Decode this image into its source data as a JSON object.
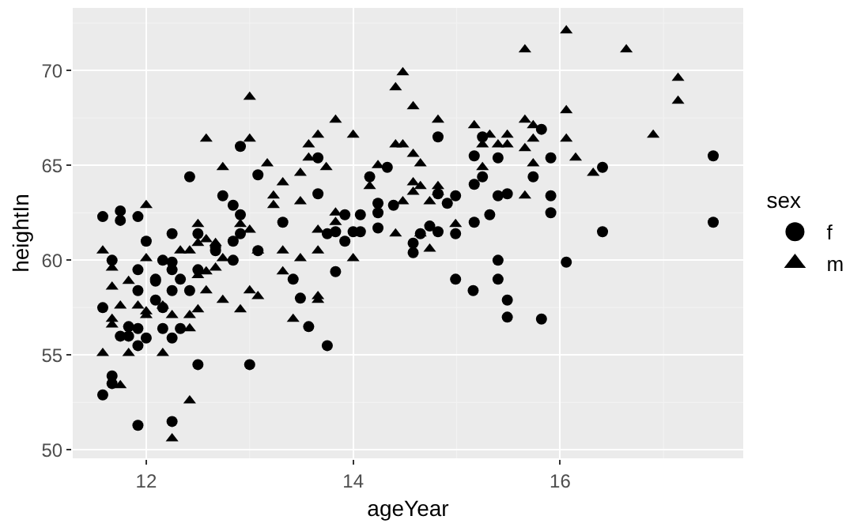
{
  "chart_data": {
    "type": "scatter",
    "xlabel": "ageYear",
    "ylabel": "heightIn",
    "legend_title": "sex",
    "xlim": [
      11.29,
      17.77
    ],
    "xticks": [
      12,
      14,
      16
    ],
    "ylim": [
      49.56,
      73.3
    ],
    "yticks": [
      50,
      55,
      60,
      65,
      70
    ],
    "grid": true,
    "legend": "right",
    "series": [
      {
        "name": "f",
        "color": "#000000",
        "marker": "circle",
        "x": [
          11.58,
          11.75,
          11.75,
          11.92,
          12.0,
          12.25,
          12.42,
          12.5,
          12.74,
          12.84,
          12.91,
          12.91,
          12.91,
          13.08,
          13.32,
          13.66,
          13.66,
          13.75,
          13.83,
          13.92,
          13.92,
          14.0,
          14.07,
          14.07,
          14.16,
          14.24,
          14.24,
          14.24,
          14.33,
          14.39,
          14.82,
          15.25,
          15.82,
          15.17,
          15.4,
          15.91,
          16.41,
          17.48,
          15.25,
          15.74,
          15.17,
          14.82,
          14.99,
          14.91,
          15.4,
          15.49,
          15.91,
          15.91,
          15.32,
          15.17,
          14.99,
          14.74,
          14.82,
          14.65,
          16.41,
          17.48,
          14.58,
          14.58,
          12.84,
          11.67,
          11.92,
          12.16,
          12.09,
          12.09,
          12.25,
          12.25,
          12.33,
          12.67,
          12.67,
          12.5,
          12.84,
          13.08,
          13.42,
          13.83,
          11.58,
          11.92,
          12.09,
          12.25,
          12.42,
          12.16,
          13.49,
          11.83,
          11.75,
          11.92,
          11.83,
          12.16,
          12.33,
          11.92,
          12.0,
          12.25,
          13.57,
          13.75,
          12.5,
          13.0,
          11.67,
          11.67,
          11.58,
          11.92,
          12.25,
          14.99,
          15.4,
          15.4,
          15.16,
          15.49,
          15.49,
          15.82,
          16.06
        ],
        "values": [
          62.3,
          62.6,
          62.1,
          62.3,
          61.0,
          61.4,
          64.4,
          61.4,
          63.4,
          62.9,
          62.4,
          61.4,
          66.0,
          64.5,
          62.0,
          65.4,
          63.5,
          61.4,
          61.5,
          61.0,
          62.4,
          61.5,
          62.4,
          61.5,
          64.4,
          63.0,
          62.5,
          61.7,
          64.9,
          62.9,
          66.5,
          66.5,
          66.9,
          65.5,
          65.4,
          65.4,
          64.9,
          65.5,
          64.4,
          64.4,
          64.0,
          63.5,
          63.4,
          63.0,
          63.4,
          63.5,
          63.4,
          62.5,
          62.4,
          62.0,
          61.4,
          61.8,
          61.5,
          61.4,
          61.5,
          62.0,
          60.9,
          60.4,
          61.0,
          60.0,
          59.5,
          60.0,
          59.0,
          58.9,
          59.5,
          59.9,
          59.0,
          60.7,
          60.5,
          59.5,
          60.0,
          60.5,
          59.0,
          59.4,
          57.5,
          58.4,
          57.9,
          58.4,
          58.4,
          57.5,
          58.0,
          56.5,
          56.0,
          56.4,
          56.0,
          56.4,
          56.4,
          55.5,
          55.9,
          55.9,
          56.5,
          55.5,
          54.5,
          54.5,
          53.9,
          53.5,
          52.9,
          51.3,
          51.5,
          59.0,
          60.0,
          59.0,
          58.4,
          57.9,
          57.0,
          56.9,
          59.9
        ]
      },
      {
        "name": "m",
        "color": "#000000",
        "marker": "triangle",
        "x": [
          11.58,
          12.0,
          12.33,
          12.5,
          12.5,
          12.58,
          12.58,
          12.67,
          12.74,
          12.91,
          13.0,
          13.0,
          13.0,
          13.08,
          13.17,
          13.23,
          13.23,
          13.32,
          13.32,
          13.49,
          13.49,
          13.57,
          13.57,
          13.66,
          13.66,
          13.66,
          13.74,
          13.83,
          13.83,
          13.83,
          14.0,
          14.16,
          14.24,
          14.41,
          14.41,
          14.41,
          16.06,
          15.66,
          16.64,
          14.48,
          17.14,
          17.14,
          14.58,
          16.06,
          14.82,
          15.17,
          15.66,
          15.74,
          14.48,
          15.25,
          15.32,
          15.4,
          15.49,
          15.49,
          15.66,
          15.74,
          16.06,
          16.9,
          14.58,
          14.65,
          15.25,
          15.74,
          16.15,
          16.32,
          14.58,
          14.65,
          14.82,
          14.58,
          14.82,
          14.48,
          14.74,
          15.66,
          14.65,
          14.99,
          14.74,
          12.0,
          12.42,
          12.74,
          11.67,
          12.5,
          12.58,
          12.67,
          13.49,
          14.0,
          13.32,
          11.67,
          11.83,
          12.58,
          13.0,
          13.08,
          12.74,
          11.75,
          11.92,
          12.0,
          12.0,
          12.16,
          12.25,
          12.42,
          12.42,
          12.5,
          12.91,
          13.66,
          13.66,
          13.42,
          11.67,
          11.67,
          11.58,
          11.83,
          12.16,
          11.75,
          12.42,
          12.25
        ],
        "values": [
          60.5,
          62.9,
          60.5,
          61.9,
          60.9,
          61.1,
          66.4,
          60.9,
          64.9,
          61.9,
          61.6,
          68.6,
          66.4,
          60.5,
          65.1,
          63.4,
          62.9,
          64.1,
          60.5,
          64.6,
          63.1,
          66.1,
          65.4,
          66.6,
          61.6,
          60.5,
          64.9,
          67.4,
          62.5,
          62.0,
          66.6,
          63.9,
          65.0,
          69.1,
          66.1,
          61.4,
          72.1,
          71.1,
          71.1,
          69.9,
          69.6,
          68.4,
          68.1,
          67.9,
          67.4,
          67.1,
          67.4,
          67.1,
          66.1,
          66.1,
          66.6,
          66.1,
          66.6,
          66.1,
          65.9,
          66.4,
          66.4,
          66.6,
          65.6,
          65.1,
          64.9,
          65.1,
          65.4,
          64.6,
          64.1,
          63.9,
          63.9,
          63.6,
          63.6,
          63.1,
          63.1,
          63.4,
          61.4,
          61.9,
          60.6,
          60.1,
          60.5,
          60.1,
          59.6,
          59.2,
          59.4,
          59.6,
          60.1,
          60.1,
          59.4,
          58.6,
          58.9,
          58.4,
          58.4,
          58.1,
          57.9,
          57.6,
          57.6,
          57.3,
          57.1,
          57.6,
          57.1,
          57.1,
          56.4,
          57.4,
          57.4,
          58.1,
          57.9,
          56.9,
          56.9,
          56.6,
          55.1,
          55.1,
          55.1,
          53.4,
          52.6,
          50.6
        ]
      }
    ]
  }
}
